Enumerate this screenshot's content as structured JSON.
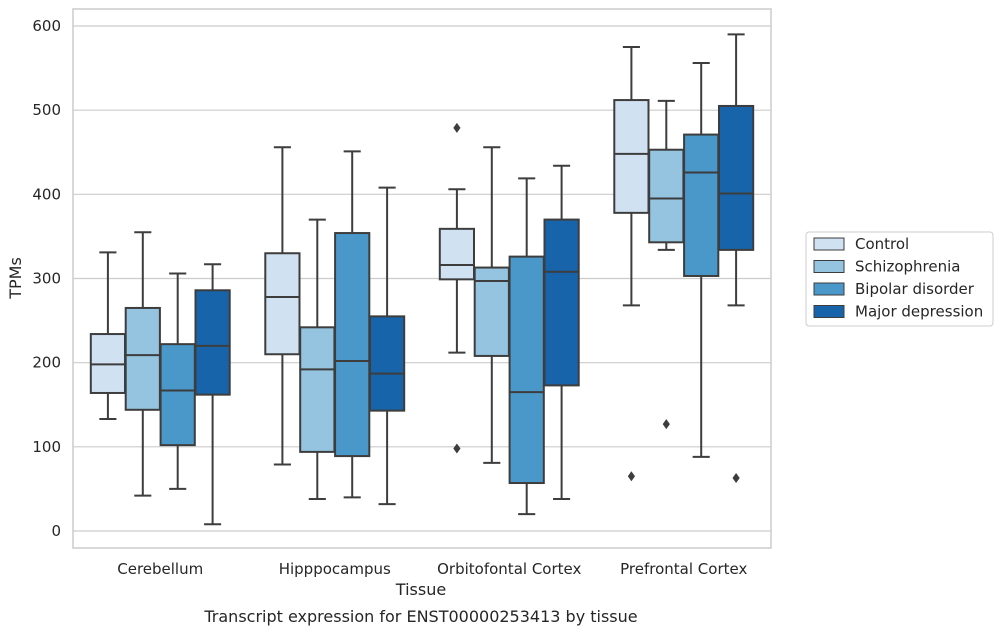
{
  "chart_data": {
    "type": "box",
    "title": "",
    "caption": "Transcript expression for ENST00000253413 by tissue",
    "xlabel": "Tissue",
    "ylabel": "TPMs",
    "ylim": [
      -20,
      620
    ],
    "yticks": [
      0,
      100,
      200,
      300,
      400,
      500,
      600
    ],
    "grid": "horizontal",
    "legend_position": "right",
    "categories": [
      "Cerebellum",
      "Hipppocampus",
      "Orbitofontal Cortex",
      "Prefrontal Cortex"
    ],
    "series": [
      {
        "name": "Control",
        "color": "#d0e1f2",
        "boxes": [
          {
            "whisker_low": 133,
            "q1": 164,
            "median": 198,
            "q3": 234,
            "whisker_high": 331,
            "outliers": []
          },
          {
            "whisker_low": 79,
            "q1": 210,
            "median": 278,
            "q3": 330,
            "whisker_high": 456,
            "outliers": []
          },
          {
            "whisker_low": 212,
            "q1": 299,
            "median": 316,
            "q3": 359,
            "whisker_high": 406,
            "outliers": [
              98,
              479
            ]
          },
          {
            "whisker_low": 268,
            "q1": 378,
            "median": 448,
            "q3": 512,
            "whisker_high": 575,
            "outliers": [
              65
            ]
          }
        ]
      },
      {
        "name": "Schizophrenia",
        "color": "#94c4df",
        "boxes": [
          {
            "whisker_low": 42,
            "q1": 144,
            "median": 209,
            "q3": 265,
            "whisker_high": 355,
            "outliers": []
          },
          {
            "whisker_low": 38,
            "q1": 94,
            "median": 192,
            "q3": 242,
            "whisker_high": 370,
            "outliers": []
          },
          {
            "whisker_low": 81,
            "q1": 208,
            "median": 297,
            "q3": 313,
            "whisker_high": 456,
            "outliers": []
          },
          {
            "whisker_low": 334,
            "q1": 343,
            "median": 395,
            "q3": 453,
            "whisker_high": 511,
            "outliers": [
              127
            ]
          }
        ]
      },
      {
        "name": "Bipolar disorder",
        "color": "#4a98c9",
        "boxes": [
          {
            "whisker_low": 50,
            "q1": 102,
            "median": 167,
            "q3": 222,
            "whisker_high": 306,
            "outliers": []
          },
          {
            "whisker_low": 40,
            "q1": 89,
            "median": 202,
            "q3": 354,
            "whisker_high": 451,
            "outliers": []
          },
          {
            "whisker_low": 20,
            "q1": 57,
            "median": 165,
            "q3": 326,
            "whisker_high": 419,
            "outliers": []
          },
          {
            "whisker_low": 88,
            "q1": 303,
            "median": 426,
            "q3": 471,
            "whisker_high": 556,
            "outliers": []
          }
        ]
      },
      {
        "name": "Major depression",
        "color": "#1764ab",
        "boxes": [
          {
            "whisker_low": 8,
            "q1": 162,
            "median": 220,
            "q3": 286,
            "whisker_high": 317,
            "outliers": []
          },
          {
            "whisker_low": 32,
            "q1": 143,
            "median": 187,
            "q3": 255,
            "whisker_high": 408,
            "outliers": []
          },
          {
            "whisker_low": 38,
            "q1": 173,
            "median": 308,
            "q3": 370,
            "whisker_high": 434,
            "outliers": []
          },
          {
            "whisker_low": 268,
            "q1": 334,
            "median": 401,
            "q3": 505,
            "whisker_high": 590,
            "outliers": [
              63
            ]
          }
        ]
      }
    ]
  }
}
